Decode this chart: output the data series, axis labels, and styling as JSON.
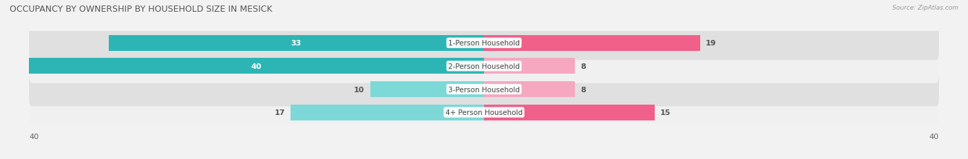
{
  "title": "OCCUPANCY BY OWNERSHIP BY HOUSEHOLD SIZE IN MESICK",
  "source": "Source: ZipAtlas.com",
  "categories": [
    "1-Person Household",
    "2-Person Household",
    "3-Person Household",
    "4+ Person Household"
  ],
  "owner_values": [
    33,
    40,
    10,
    17
  ],
  "renter_values": [
    19,
    8,
    8,
    15
  ],
  "owner_color_dark": "#2db5b5",
  "owner_color_light": "#7dd8d8",
  "renter_color_dark": "#f0608a",
  "renter_color_light": "#f5a8c0",
  "row_bg_color_light": "#f0f0f0",
  "row_bg_color_dark": "#e0e0e0",
  "max_value": 40,
  "axis_label_left": "40",
  "axis_label_right": "40",
  "title_fontsize": 9,
  "label_fontsize": 8,
  "category_fontsize": 7.5,
  "legend_fontsize": 8,
  "figsize": [
    14.06,
    2.32
  ],
  "dpi": 100,
  "background_color": "#f2f2f2"
}
